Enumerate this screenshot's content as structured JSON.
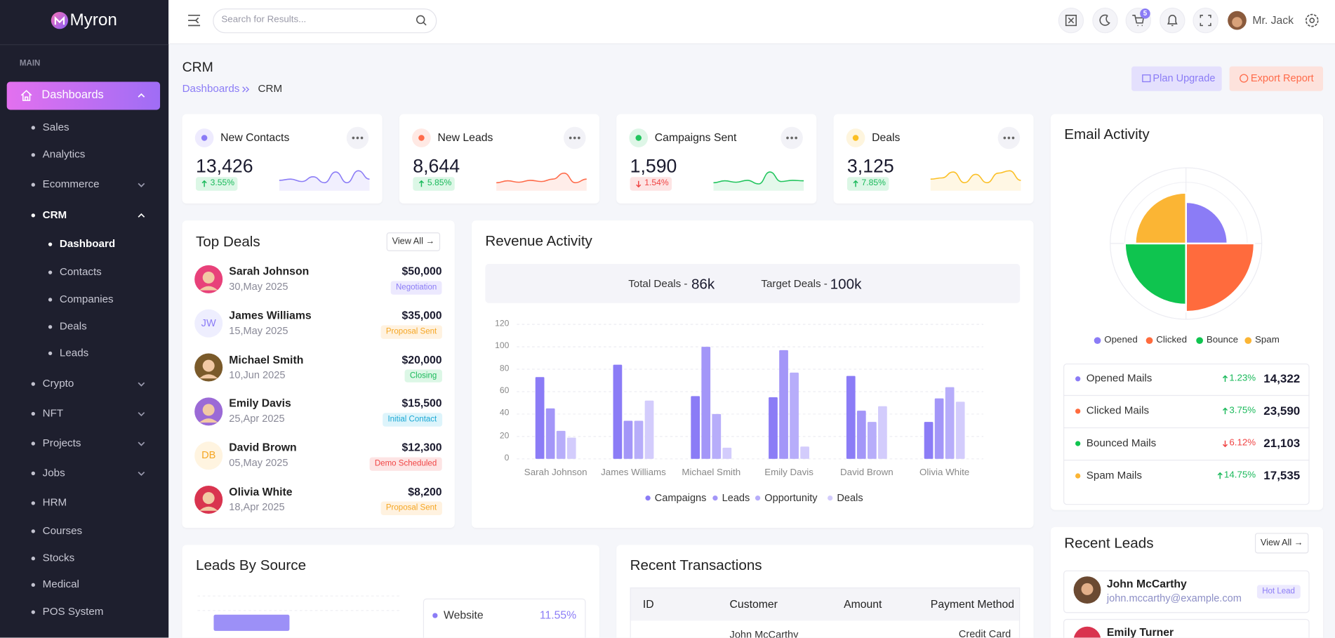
{
  "brand": "Myron",
  "header": {
    "search_placeholder": "Search for Results...",
    "cart_count": 5,
    "user": "Mr. Jack"
  },
  "sidebar": {
    "section": "MAIN",
    "items": [
      {
        "label": "Dashboards",
        "active": true,
        "submenu": "expanded",
        "children": [
          {
            "label": "Sales"
          },
          {
            "label": "Analytics"
          },
          {
            "label": "Ecommerce",
            "submenu": "collapsed"
          },
          {
            "label": "CRM",
            "submenu": "expanded",
            "children": [
              {
                "label": "Dashboard",
                "active": true
              },
              {
                "label": "Contacts"
              },
              {
                "label": "Companies"
              },
              {
                "label": "Deals"
              },
              {
                "label": "Leads"
              }
            ]
          },
          {
            "label": "Crypto",
            "submenu": "collapsed"
          },
          {
            "label": "NFT",
            "submenu": "collapsed"
          },
          {
            "label": "Projects",
            "submenu": "collapsed"
          },
          {
            "label": "Jobs",
            "submenu": "collapsed"
          },
          {
            "label": "HRM"
          },
          {
            "label": "Courses"
          },
          {
            "label": "Stocks"
          },
          {
            "label": "Medical"
          },
          {
            "label": "POS System"
          }
        ]
      }
    ]
  },
  "page": {
    "title": "CRM",
    "breadcrumb": [
      "Dashboards",
      "CRM"
    ],
    "actions": [
      "Plan Upgrade",
      "Export Report"
    ]
  },
  "stat_cards": [
    {
      "title": "New Contacts",
      "value": "13,426",
      "change": "3.55%",
      "trend": "up",
      "color": "#8b7cf6"
    },
    {
      "title": "New Leads",
      "value": "8,644",
      "change": "5.85%",
      "trend": "up",
      "color": "#ff6b4a"
    },
    {
      "title": "Campaigns Sent",
      "value": "1,590",
      "change": "1.54%",
      "trend": "down",
      "color": "#22c55e"
    },
    {
      "title": "Deals",
      "value": "3,125",
      "change": "7.85%",
      "trend": "up",
      "color": "#fbbf24"
    }
  ],
  "top_deals": {
    "title": "Top Deals",
    "action": "View All →",
    "rows": [
      {
        "name": "Sarah Johnson",
        "date": "30,May 2025",
        "amount": "$50,000",
        "status": "Negotiation"
      },
      {
        "name": "James Williams",
        "initials": "JW",
        "date": "15,May 2025",
        "amount": "$35,000",
        "status": "Proposal Sent"
      },
      {
        "name": "Michael Smith",
        "date": "10,Jun 2025",
        "amount": "$20,000",
        "status": "Closing"
      },
      {
        "name": "Emily Davis",
        "date": "25,Apr 2025",
        "amount": "$15,500",
        "status": "Initial Contact"
      },
      {
        "name": "David Brown",
        "initials": "DB",
        "date": "05,May 2025",
        "amount": "$12,300",
        "status": "Demo Scheduled"
      },
      {
        "name": "Olivia White",
        "date": "18,Apr 2025",
        "amount": "$8,200",
        "status": "Proposal Sent"
      }
    ]
  },
  "revenue_activity": {
    "title": "Revenue Activity",
    "summary": [
      {
        "label": "Total Deals -",
        "value": "86k"
      },
      {
        "label": "Target Deals -",
        "value": "100k"
      }
    ],
    "chart": {
      "type": "bar",
      "categories": [
        "Sarah Johnson",
        "James Williams",
        "Michael Smith",
        "Emily Davis",
        "David Brown",
        "Olivia White"
      ],
      "series": [
        {
          "name": "Campaigns",
          "color": "#8b7cf6",
          "values": [
            73,
            84,
            56,
            55,
            74,
            33
          ]
        },
        {
          "name": "Leads",
          "color": "#a396f8",
          "values": [
            45,
            34,
            100,
            97,
            43,
            54
          ]
        },
        {
          "name": "Opportunity",
          "color": "#b7adfa",
          "values": [
            25,
            34,
            40,
            77,
            33,
            64
          ]
        },
        {
          "name": "Deals",
          "color": "#d3ccfc",
          "values": [
            19,
            52,
            10,
            11,
            47,
            51
          ]
        }
      ],
      "ylim": [
        0,
        120
      ],
      "yticks": [
        0,
        20,
        40,
        60,
        80,
        100,
        120
      ],
      "grid": true
    }
  },
  "email_activity": {
    "title": "Email Activity",
    "type": "polarArea",
    "rlim": [
      0,
      25000
    ],
    "legend": [
      {
        "name": "Opened",
        "color": "#8b7cf6"
      },
      {
        "name": "Clicked",
        "color": "#ff6b3d"
      },
      {
        "name": "Bounce",
        "color": "#0fc44f"
      },
      {
        "name": "Spam",
        "color": "#fbb534"
      }
    ],
    "rows": [
      {
        "label": "Opened Mails",
        "change": "1.23%",
        "trend": "up",
        "value": 14322,
        "value_label": "14,322"
      },
      {
        "label": "Clicked Mails",
        "change": "3.75%",
        "trend": "up",
        "value": 23590,
        "value_label": "23,590"
      },
      {
        "label": "Bounced Mails",
        "change": "6.12%",
        "trend": "down",
        "value": 21103,
        "value_label": "21,103"
      },
      {
        "label": "Spam Mails",
        "change": "14.75%",
        "trend": "up",
        "value": 17535,
        "value_label": "17,535"
      }
    ]
  },
  "leads_by_source": {
    "title": "Leads By Source",
    "sources": [
      {
        "name": "Website",
        "share": "11.55%"
      }
    ]
  },
  "recent_transactions": {
    "title": "Recent Transactions",
    "columns": [
      "ID",
      "Customer",
      "Amount",
      "Payment Method"
    ],
    "rows": [
      {
        "customer": "John McCarthy",
        "payment": "Credit Card"
      }
    ]
  },
  "recent_leads": {
    "title": "Recent Leads",
    "action": "View All →",
    "rows": [
      {
        "name": "John McCarthy",
        "email": "john.mccarthy@example.com",
        "tag": "Hot Lead"
      },
      {
        "name": "Emily Turner"
      }
    ]
  }
}
